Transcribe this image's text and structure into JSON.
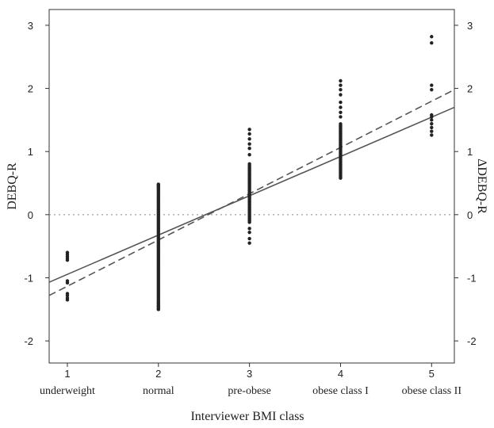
{
  "chart_data": {
    "type": "scatter",
    "xlabel": "Interviewer BMI class",
    "ylabel_left": "DEBQ-R",
    "ylabel_right": "ΔDEBQ-R",
    "xlim": [
      0.8,
      5.25
    ],
    "ylim": [
      -2.35,
      3.25
    ],
    "x_ticks": [
      1,
      2,
      3,
      4,
      5
    ],
    "y_ticks": [
      -2,
      -1,
      0,
      1,
      2,
      3
    ],
    "category_labels": [
      "underweight",
      "normal",
      "pre-obese",
      "obese class I",
      "obese class II"
    ],
    "reference_line_y": 0,
    "grid": false,
    "points": [
      {
        "x": 1,
        "y": [
          -0.6,
          -0.63,
          -0.66,
          -0.69,
          -0.72,
          -1.05,
          -1.08,
          -1.25,
          -1.28,
          -1.32,
          -1.35
        ]
      },
      {
        "x": 2,
        "y_range": [
          -1.5,
          0.48
        ],
        "y_extra": [
          -1.5,
          -1.45,
          -1.4,
          0.45,
          0.48
        ]
      },
      {
        "x": 3,
        "y_range": [
          -0.12,
          0.82
        ],
        "y_extra": [
          -0.45,
          -0.38,
          -0.28,
          -0.22,
          0.95,
          1.05,
          1.12,
          1.2,
          1.28,
          1.35
        ]
      },
      {
        "x": 4,
        "y_range": [
          0.58,
          1.45
        ],
        "y_extra": [
          1.55,
          1.62,
          1.7,
          1.78,
          1.9,
          1.98,
          2.05,
          2.12
        ]
      },
      {
        "x": 5,
        "y": [
          1.26,
          1.32,
          1.38,
          1.44,
          1.5,
          1.55,
          1.58,
          1.98,
          2.05,
          2.72,
          2.82
        ]
      }
    ],
    "series": [
      {
        "style": "solid",
        "color": "#555555",
        "x": [
          0.8,
          5.25
        ],
        "y": [
          -1.07,
          1.7
        ]
      },
      {
        "style": "dashed",
        "color": "#555555",
        "x": [
          0.8,
          5.25
        ],
        "y": [
          -1.28,
          1.98
        ]
      }
    ]
  }
}
